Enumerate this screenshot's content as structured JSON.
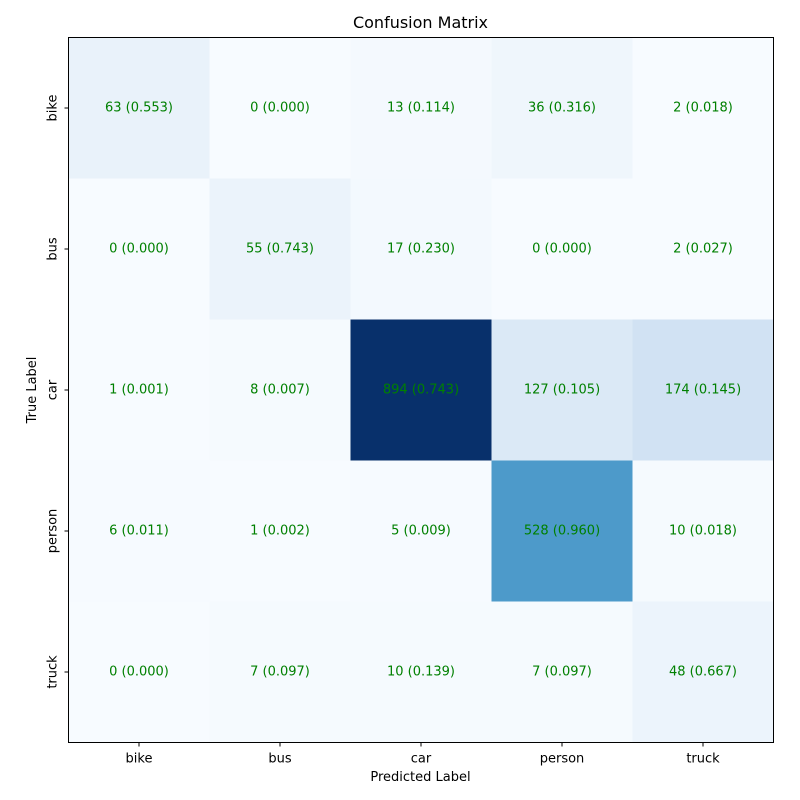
{
  "chart_data": {
    "type": "heatmap",
    "title": "Confusion Matrix",
    "xlabel": "Predicted Label",
    "ylabel": "True Label",
    "x_categories": [
      "bike",
      "bus",
      "car",
      "person",
      "truck"
    ],
    "y_categories": [
      "bike",
      "bus",
      "car",
      "person",
      "truck"
    ],
    "counts": [
      [
        63,
        0,
        13,
        36,
        2
      ],
      [
        0,
        55,
        17,
        0,
        2
      ],
      [
        1,
        8,
        894,
        127,
        174
      ],
      [
        6,
        1,
        5,
        528,
        10
      ],
      [
        0,
        7,
        10,
        7,
        48
      ]
    ],
    "labels": [
      [
        "63 (0.553)",
        "0 (0.000)",
        "13 (0.114)",
        "36 (0.316)",
        "2 (0.018)"
      ],
      [
        "0 (0.000)",
        "55 (0.743)",
        "17 (0.230)",
        "0 (0.000)",
        "2 (0.027)"
      ],
      [
        "1 (0.001)",
        "8 (0.007)",
        "894 (0.743)",
        "127 (0.105)",
        "174 (0.145)"
      ],
      [
        "6 (0.011)",
        "1 (0.002)",
        "5 (0.009)",
        "528 (0.960)",
        "10 (0.018)"
      ],
      [
        "0 (0.000)",
        "7 (0.097)",
        "10 (0.139)",
        "7 (0.097)",
        "48 (0.667)"
      ]
    ],
    "colormap": "Blues",
    "color_range": [
      0,
      894
    ],
    "annotation_color": "#008000",
    "colorbar": false,
    "grid": false
  }
}
